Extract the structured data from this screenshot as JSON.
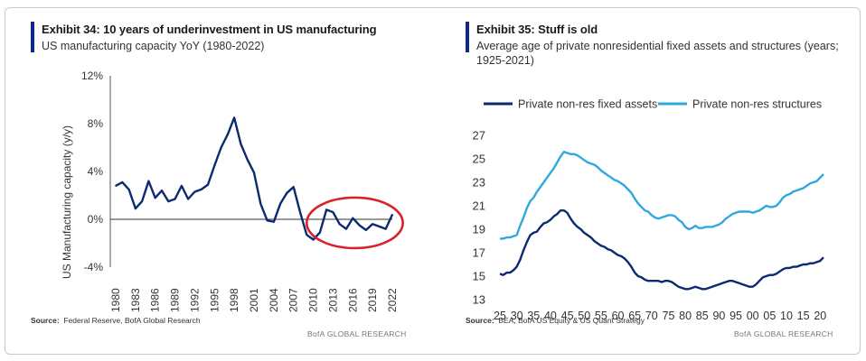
{
  "left": {
    "title": "Exhibit 34: 10 years of underinvestment in US manufacturing",
    "subtitle": "US manufacturing capacity YoY (1980-2022)",
    "source_label": "Source:",
    "source_text": "Federal Reserve, BofA Global Research",
    "brand": "BofA GLOBAL RESEARCH"
  },
  "right": {
    "title": "Exhibit 35: Stuff is old",
    "subtitle": "Average age of private nonresidential fixed assets and structures (years; 1925-2021)",
    "source_label": "Source:",
    "source_text": "BEA, BofA US Equity & US Quant Strategy",
    "brand": "BofA GLOBAL RESEARCH"
  },
  "chart_data": [
    {
      "type": "line",
      "title": "Exhibit 34: 10 years of underinvestment in US manufacturing",
      "subtitle": "US manufacturing capacity YoY (1980-2022)",
      "xlabel": "",
      "ylabel": "US Manufacturing capacity (y/y)",
      "ylim": [
        -4,
        12
      ],
      "yticks": [
        "12%",
        "8%",
        "4%",
        "0%",
        "-4%"
      ],
      "ytick_values": [
        12,
        8,
        4,
        0,
        -4
      ],
      "xticks": [
        "1980",
        "1983",
        "1986",
        "1989",
        "1992",
        "1995",
        "1998",
        "2001",
        "2004",
        "2007",
        "2010",
        "2013",
        "2016",
        "2019",
        "2022"
      ],
      "grid": false,
      "annotation": "red ellipse highlighting 2010-2022",
      "series": [
        {
          "color": "#0b2a6f",
          "x": [
            1980,
            1981,
            1982,
            1983,
            1984,
            1985,
            1986,
            1987,
            1988,
            1989,
            1990,
            1991,
            1992,
            1993,
            1994,
            1995,
            1996,
            1997,
            1998,
            1999,
            2000,
            2001,
            2002,
            2003,
            2004,
            2005,
            2006,
            2007,
            2008,
            2009,
            2010,
            2011,
            2012,
            2013,
            2014,
            2015,
            2016,
            2017,
            2018,
            2019,
            2020,
            2021,
            2022
          ],
          "values": [
            2.8,
            3.1,
            2.5,
            0.9,
            1.5,
            3.2,
            1.8,
            2.4,
            1.5,
            1.7,
            2.8,
            1.7,
            2.3,
            2.5,
            2.9,
            4.5,
            6.0,
            7.1,
            8.5,
            6.3,
            5.0,
            3.9,
            1.3,
            -0.1,
            -0.2,
            1.3,
            2.2,
            2.7,
            0.6,
            -1.3,
            -1.7,
            -1.1,
            0.8,
            0.6,
            -0.4,
            -0.8,
            0.1,
            -0.5,
            -0.9,
            -0.4,
            -0.6,
            -0.8,
            0.4
          ]
        }
      ]
    },
    {
      "type": "line",
      "title": "Exhibit 35: Stuff is old",
      "subtitle": "Average age of private nonresidential fixed assets and structures (years; 1925-2021)",
      "xlabel": "",
      "ylabel": "",
      "ylim": [
        13,
        27
      ],
      "yticks": [
        27,
        25,
        23,
        21,
        19,
        17,
        15,
        13
      ],
      "xticks": [
        "25",
        "30",
        "35",
        "40",
        "45",
        "50",
        "55",
        "60",
        "65",
        "70",
        "75",
        "80",
        "85",
        "90",
        "95",
        "00",
        "05",
        "10",
        "15",
        "20"
      ],
      "grid": false,
      "legend": "top",
      "x": [
        1925,
        1926,
        1927,
        1928,
        1929,
        1930,
        1931,
        1932,
        1933,
        1934,
        1935,
        1936,
        1937,
        1938,
        1939,
        1940,
        1941,
        1942,
        1943,
        1944,
        1945,
        1946,
        1947,
        1948,
        1949,
        1950,
        1951,
        1952,
        1953,
        1954,
        1955,
        1956,
        1957,
        1958,
        1959,
        1960,
        1961,
        1962,
        1963,
        1964,
        1965,
        1966,
        1967,
        1968,
        1969,
        1970,
        1971,
        1972,
        1973,
        1974,
        1975,
        1976,
        1977,
        1978,
        1979,
        1980,
        1981,
        1982,
        1983,
        1984,
        1985,
        1986,
        1987,
        1988,
        1989,
        1990,
        1991,
        1992,
        1993,
        1994,
        1995,
        1996,
        1997,
        1998,
        1999,
        2000,
        2001,
        2002,
        2003,
        2004,
        2005,
        2006,
        2007,
        2008,
        2009,
        2010,
        2011,
        2012,
        2013,
        2014,
        2015,
        2016,
        2017,
        2018,
        2019,
        2020,
        2021
      ],
      "series": [
        {
          "name": "Private non-res fixed assets",
          "color": "#0b2a6f",
          "values": [
            15.2,
            15.1,
            15.3,
            15.3,
            15.5,
            15.8,
            16.4,
            17.2,
            17.9,
            18.5,
            18.7,
            18.8,
            19.2,
            19.5,
            19.6,
            19.8,
            20.1,
            20.3,
            20.6,
            20.6,
            20.4,
            19.9,
            19.5,
            19.2,
            19.0,
            18.7,
            18.5,
            18.3,
            18.0,
            17.8,
            17.6,
            17.5,
            17.3,
            17.2,
            17.0,
            16.8,
            16.7,
            16.5,
            16.2,
            15.8,
            15.3,
            15.0,
            14.9,
            14.7,
            14.6,
            14.6,
            14.6,
            14.6,
            14.5,
            14.6,
            14.6,
            14.5,
            14.3,
            14.1,
            14.0,
            13.9,
            13.9,
            14.0,
            14.1,
            14.0,
            13.9,
            13.9,
            14.0,
            14.1,
            14.2,
            14.3,
            14.4,
            14.5,
            14.6,
            14.6,
            14.5,
            14.4,
            14.3,
            14.2,
            14.1,
            14.1,
            14.3,
            14.6,
            14.9,
            15.0,
            15.1,
            15.1,
            15.2,
            15.4,
            15.6,
            15.7,
            15.7,
            15.8,
            15.8,
            15.9,
            16.0,
            16.0,
            16.1,
            16.1,
            16.2,
            16.3,
            16.6
          ]
        },
        {
          "name": "Private non-res structures",
          "color": "#2ea8dd",
          "values": [
            18.2,
            18.2,
            18.3,
            18.3,
            18.4,
            18.5,
            19.3,
            20.0,
            20.8,
            21.4,
            21.7,
            22.2,
            22.6,
            23.0,
            23.4,
            23.8,
            24.2,
            24.7,
            25.2,
            25.6,
            25.5,
            25.4,
            25.4,
            25.3,
            25.1,
            24.9,
            24.7,
            24.6,
            24.5,
            24.3,
            24.0,
            23.8,
            23.6,
            23.4,
            23.2,
            23.1,
            22.9,
            22.7,
            22.4,
            22.1,
            21.6,
            21.2,
            20.9,
            20.6,
            20.5,
            20.2,
            20.0,
            19.9,
            20.0,
            20.1,
            20.2,
            20.2,
            20.1,
            19.8,
            19.6,
            19.2,
            19.0,
            19.1,
            19.3,
            19.1,
            19.1,
            19.2,
            19.2,
            19.2,
            19.3,
            19.4,
            19.6,
            19.9,
            20.1,
            20.3,
            20.4,
            20.5,
            20.5,
            20.5,
            20.5,
            20.4,
            20.5,
            20.6,
            20.8,
            21.0,
            20.9,
            20.9,
            21.0,
            21.3,
            21.7,
            21.9,
            22.0,
            22.2,
            22.3,
            22.4,
            22.5,
            22.7,
            22.9,
            23.0,
            23.1,
            23.4,
            23.7
          ]
        }
      ]
    }
  ]
}
